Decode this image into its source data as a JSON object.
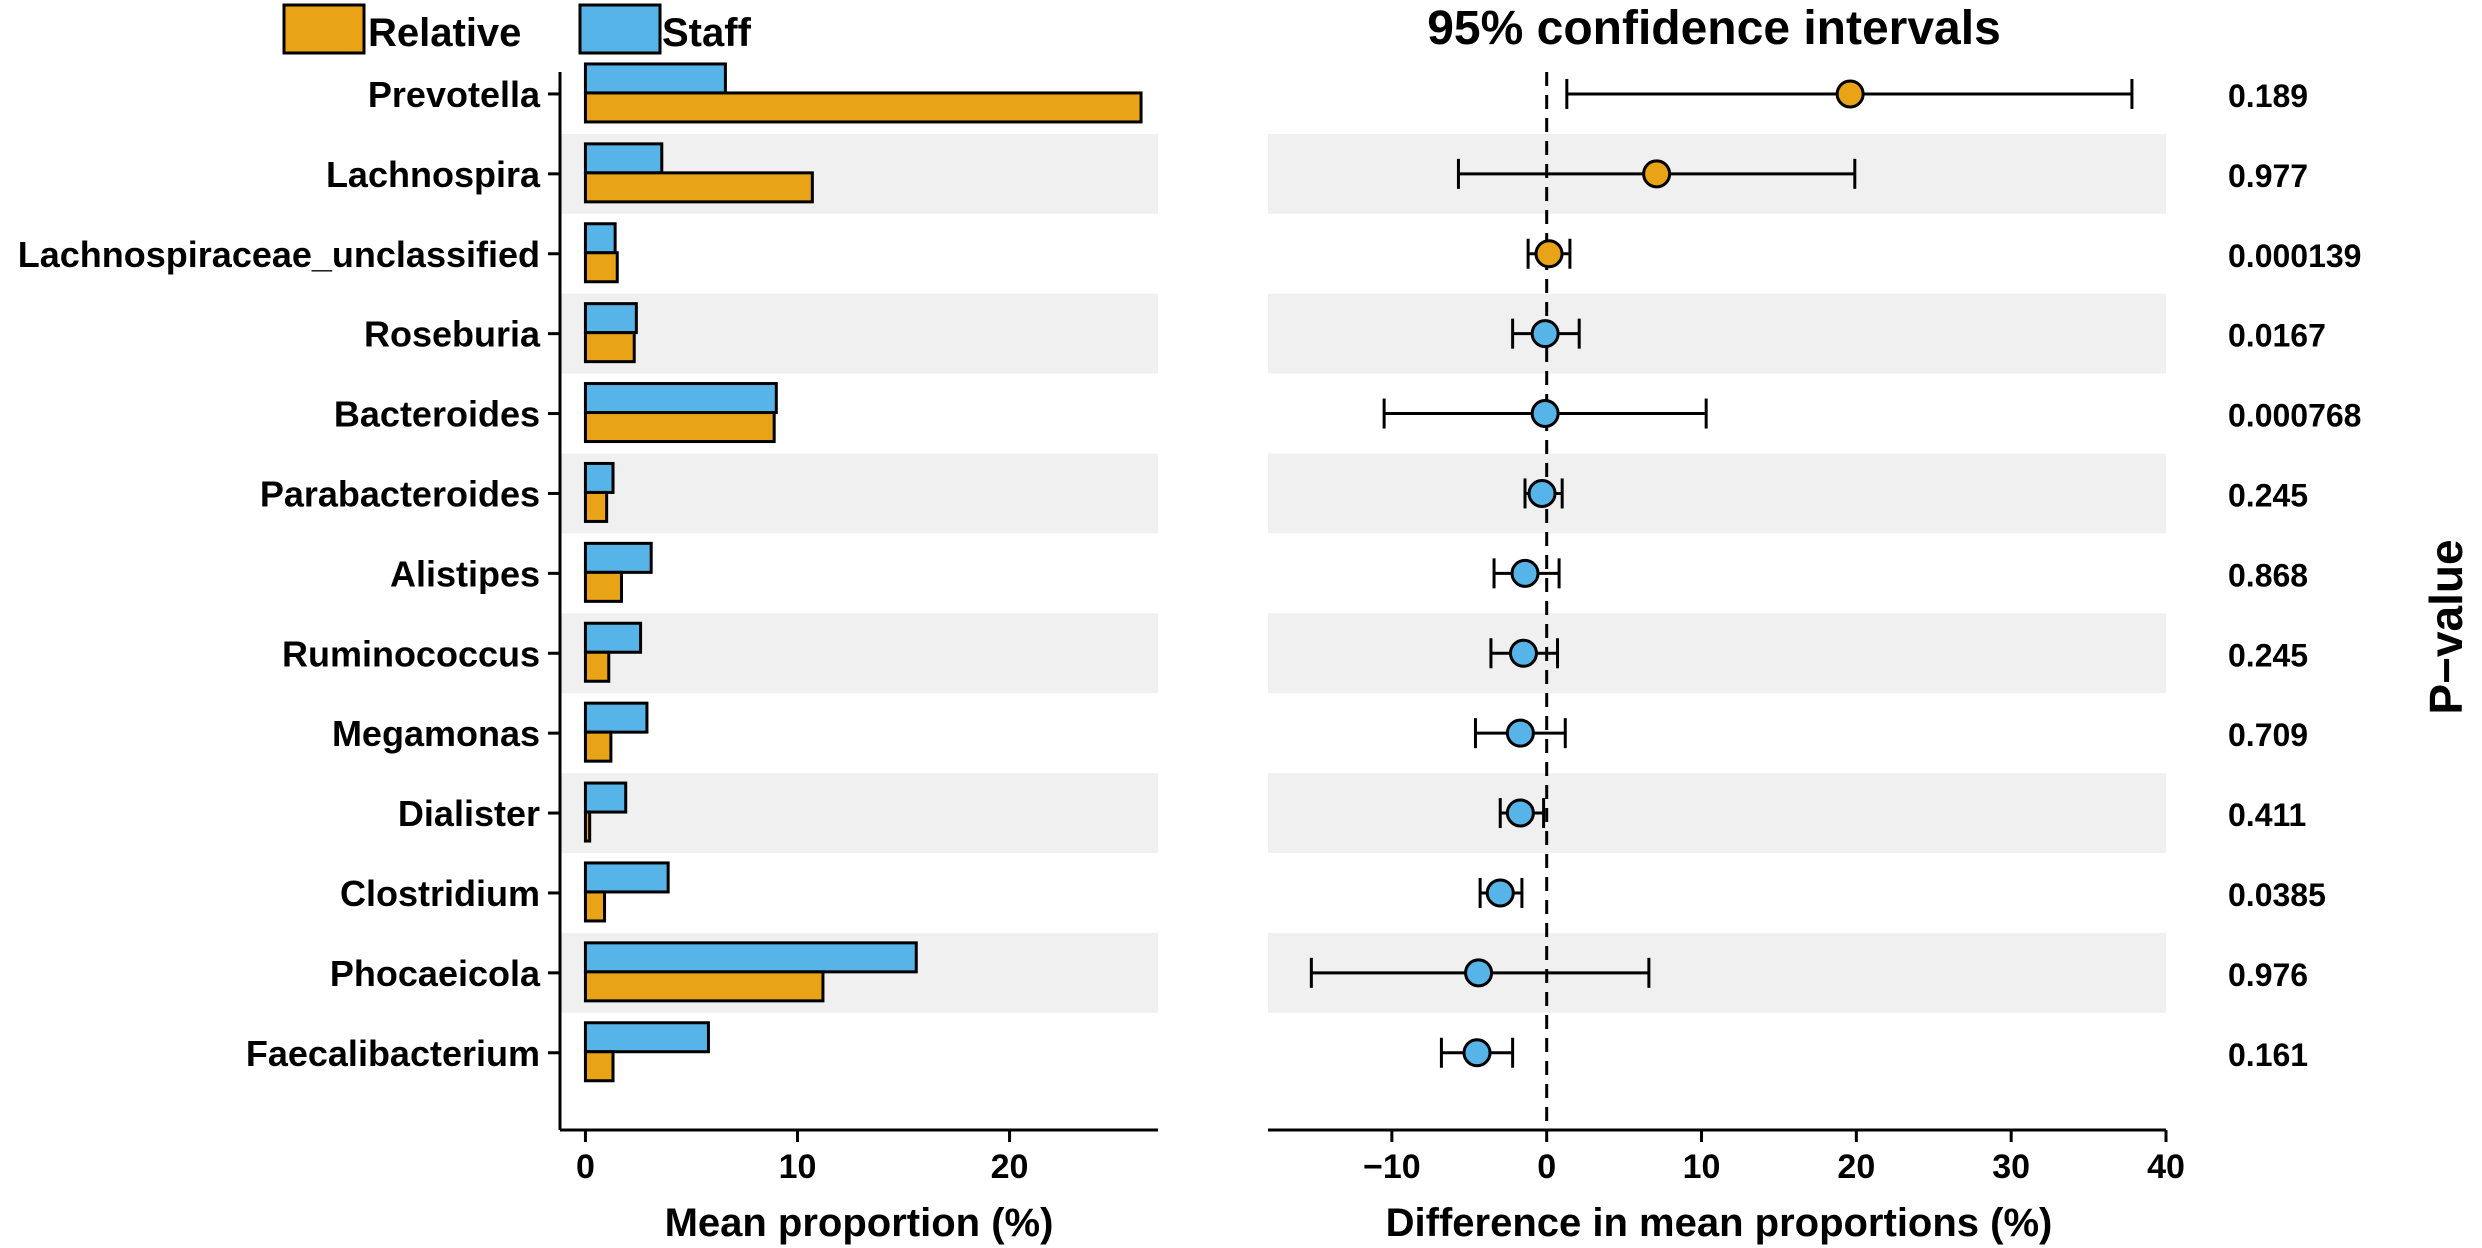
{
  "legend": {
    "items": [
      {
        "label": "Relative",
        "color": "#E8A317"
      },
      {
        "label": "Staff",
        "color": "#56B4E9"
      }
    ]
  },
  "chart_data": [
    {
      "type": "bar",
      "orientation": "horizontal",
      "xlabel": "Mean proportion (%)",
      "xlim": [
        -1.2,
        27
      ],
      "xticks": [
        0,
        10,
        20
      ],
      "categories": [
        "Prevotella",
        "Lachnospira",
        "Lachnospiraceae_unclassified",
        "Roseburia",
        "Bacteroides",
        "Parabacteroides",
        "Alistipes",
        "Ruminococcus",
        "Megamonas",
        "Dialister",
        "Clostridium",
        "Phocaeicola",
        "Faecalibacterium"
      ],
      "series": [
        {
          "name": "Staff",
          "color": "#56B4E9",
          "values": [
            6.6,
            3.6,
            1.4,
            2.4,
            9.0,
            1.3,
            3.1,
            2.6,
            2.9,
            1.9,
            3.9,
            15.6,
            5.8
          ]
        },
        {
          "name": "Relative",
          "color": "#E8A317",
          "values": [
            26.2,
            10.7,
            1.5,
            2.3,
            8.9,
            1.0,
            1.7,
            1.1,
            1.2,
            0.2,
            0.9,
            11.2,
            1.3
          ]
        }
      ]
    },
    {
      "type": "scatter",
      "subtype": "errorbar",
      "title": "95% confidence intervals",
      "xlabel": "Difference in mean proportions (%)",
      "ylabel": "P−value",
      "xlim": [
        -18,
        40
      ],
      "xticks": [
        -10,
        0,
        10,
        20,
        30,
        40
      ],
      "xtick_labels": [
        "−10",
        "0",
        "10",
        "20",
        "30",
        "40"
      ],
      "reference_line": 0,
      "categories": [
        "Prevotella",
        "Lachnospira",
        "Lachnospiraceae_unclassified",
        "Roseburia",
        "Bacteroides",
        "Parabacteroides",
        "Alistipes",
        "Ruminococcus",
        "Megamonas",
        "Dialister",
        "Clostridium",
        "Phocaeicola",
        "Faecalibacterium"
      ],
      "points": [
        {
          "estimate": 19.6,
          "lower": 1.3,
          "upper": 37.8,
          "group": "Relative",
          "p_value": "0.189"
        },
        {
          "estimate": 7.1,
          "lower": -5.7,
          "upper": 19.9,
          "group": "Relative",
          "p_value": "0.977"
        },
        {
          "estimate": 0.15,
          "lower": -1.2,
          "upper": 1.5,
          "group": "Relative",
          "p_value": "0.000139"
        },
        {
          "estimate": -0.1,
          "lower": -2.2,
          "upper": 2.1,
          "group": "Staff",
          "p_value": "0.0167"
        },
        {
          "estimate": -0.1,
          "lower": -10.5,
          "upper": 10.3,
          "group": "Staff",
          "p_value": "0.000768"
        },
        {
          "estimate": -0.3,
          "lower": -1.4,
          "upper": 1.0,
          "group": "Staff",
          "p_value": "0.245"
        },
        {
          "estimate": -1.4,
          "lower": -3.4,
          "upper": 0.8,
          "group": "Staff",
          "p_value": "0.868"
        },
        {
          "estimate": -1.5,
          "lower": -3.6,
          "upper": 0.7,
          "group": "Staff",
          "p_value": "0.245"
        },
        {
          "estimate": -1.7,
          "lower": -4.6,
          "upper": 1.2,
          "group": "Staff",
          "p_value": "0.709"
        },
        {
          "estimate": -1.7,
          "lower": -3.0,
          "upper": -0.2,
          "group": "Staff",
          "p_value": "0.411"
        },
        {
          "estimate": -3.0,
          "lower": -4.3,
          "upper": -1.6,
          "group": "Staff",
          "p_value": "0.0385"
        },
        {
          "estimate": -4.4,
          "lower": -15.2,
          "upper": 6.6,
          "group": "Staff",
          "p_value": "0.976"
        },
        {
          "estimate": -4.5,
          "lower": -6.8,
          "upper": -2.2,
          "group": "Staff",
          "p_value": "0.161"
        }
      ]
    }
  ]
}
